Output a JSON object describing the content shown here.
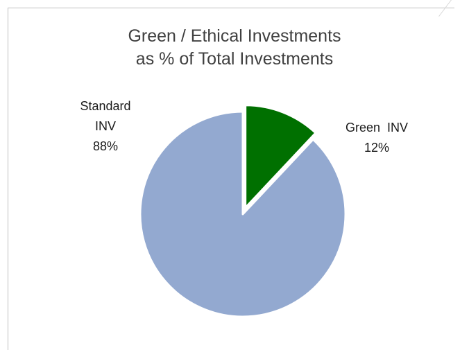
{
  "chart_data": {
    "type": "pie",
    "title": [
      "Green / Ethical Investments",
      "as % of Total Investments"
    ],
    "slices": [
      {
        "name": "Green  INV",
        "value": 12,
        "percent_label": "12%",
        "color": "#007000",
        "exploded": true
      },
      {
        "name": "Standard INV",
        "name_lines": [
          "Standard",
          "INV"
        ],
        "value": 88,
        "percent_label": "88%",
        "color": "#93a9d0",
        "exploded": false
      }
    ],
    "start_angle_deg": 0,
    "direction": "clockwise"
  }
}
